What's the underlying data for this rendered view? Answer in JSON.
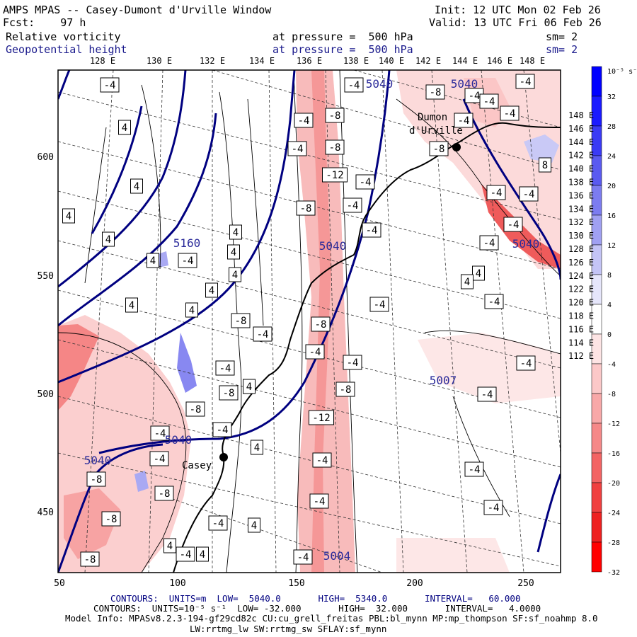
{
  "header": {
    "title": "AMPS MPAS -- Casey-Dumont d'Urville Window",
    "fcst": "Fcst:    97 h",
    "init": "Init: 12 UTC Mon 02 Feb 26",
    "valid": "Valid: 13 UTC Fri 06 Feb 26",
    "field1_name": "Relative vorticity",
    "field1_level": "at pressure =  500 hPa",
    "field1_sm": "sm= 2",
    "field2_name": "Geopotential height",
    "field2_level": "at pressure =  500 hPa",
    "field2_sm": "sm= 2"
  },
  "top_lon_labels": [
    "128 E",
    "130 E",
    "132 E",
    "134 E",
    "136 E",
    "138 E",
    "140 E",
    "142 E",
    "144 E",
    "146 E",
    "148 E"
  ],
  "right_lon_labels": [
    "148 E",
    "146 E",
    "144 E",
    "142 E",
    "140 E",
    "138 E",
    "136 E",
    "134 E",
    "132 E",
    "130 E",
    "128 E",
    "126 E",
    "124 E",
    "122 E",
    "120 E",
    "118 E",
    "116 E",
    "114 E",
    "112 E"
  ],
  "x_ticks": [
    "50",
    "100",
    "150",
    "200",
    "250"
  ],
  "y_ticks": [
    "600",
    "550",
    "500",
    "450"
  ],
  "colorbar": {
    "unit_label": "10⁻⁵ s⁻¹",
    "labels": [
      "32",
      "28",
      "24",
      "20",
      "16",
      "12",
      "8",
      "4",
      "0",
      "-4",
      "-8",
      "-12",
      "-16",
      "-20",
      "-24",
      "-28",
      "-32"
    ],
    "colors": [
      "#0000ff",
      "#1a1aff",
      "#3a3af5",
      "#5a5af0",
      "#7c7cf0",
      "#a0a0f2",
      "#c4c4f6",
      "#e6e6fb",
      "#ffffff",
      "#fde4e4",
      "#fbc8c8",
      "#f8a8a8",
      "#f58888",
      "#f36464",
      "#f04040",
      "#ee2020",
      "#ff0000"
    ]
  },
  "station_labels": {
    "casey": "Casey",
    "dumont1": "Dumon",
    "dumont2": "d'Urville"
  },
  "height_labels": [
    "5040",
    "5040",
    "5040",
    "5040",
    "5040",
    "5040",
    "5160",
    "5007",
    "5004"
  ],
  "footer": {
    "line1": "CONTOURS:  UNITS=m  LOW=  5040.0       HIGH=  5340.0       INTERVAL=   60.000",
    "line2": "CONTOURS:  UNITS=10⁻⁵ s⁻¹  LOW= -32.000       HIGH=  32.000       INTERVAL=   4.0000",
    "line3": "Model Info: MPASv8.2.3-194-gf29cd82c CU:cu_grell_freitas PBL:bl_mynn MP:mp_thompson SF:sf_noahmp 8.0",
    "line4": "LW:rrtmg_lw SW:rrtmg_sw SFLAY:sf_mynn"
  },
  "box_labels": [
    {
      "t": "-4"
    },
    {
      "t": "4"
    },
    {
      "t": "4"
    },
    {
      "t": "4"
    },
    {
      "t": "4"
    },
    {
      "t": "4"
    },
    {
      "t": "4"
    },
    {
      "t": "4"
    },
    {
      "t": "4"
    },
    {
      "t": "-4"
    },
    {
      "t": "4"
    },
    {
      "t": "4"
    },
    {
      "t": "4"
    },
    {
      "t": "-8"
    },
    {
      "t": "-4"
    },
    {
      "t": "4"
    },
    {
      "t": "-4"
    },
    {
      "t": "-8"
    },
    {
      "t": "-8"
    },
    {
      "t": "-4"
    },
    {
      "t": "-4"
    },
    {
      "t": "-4"
    },
    {
      "t": "-8"
    },
    {
      "t": "-8"
    },
    {
      "t": "-4"
    },
    {
      "t": "4"
    },
    {
      "t": "-4"
    },
    {
      "t": "4"
    },
    {
      "t": "4"
    },
    {
      "t": "4"
    },
    {
      "t": "-8"
    },
    {
      "t": "-8"
    },
    {
      "t": "-4"
    },
    {
      "t": "-8"
    },
    {
      "t": "-12"
    },
    {
      "t": "-4"
    },
    {
      "t": "-8"
    },
    {
      "t": "-4"
    },
    {
      "t": "-4"
    },
    {
      "t": "-8"
    },
    {
      "t": "-4"
    },
    {
      "t": "-8"
    },
    {
      "t": "-4"
    },
    {
      "t": "-4"
    },
    {
      "t": "-12"
    },
    {
      "t": "-8"
    },
    {
      "t": "-4"
    },
    {
      "t": "-4"
    },
    {
      "t": "-8"
    },
    {
      "t": "-4"
    },
    {
      "t": "-4"
    },
    {
      "t": "-4"
    },
    {
      "t": "-4"
    },
    {
      "t": "-4"
    },
    {
      "t": "8"
    },
    {
      "t": "-4"
    },
    {
      "t": "-4"
    },
    {
      "t": "-4"
    },
    {
      "t": "4"
    },
    {
      "t": "4"
    },
    {
      "t": "-4"
    },
    {
      "t": "-4"
    },
    {
      "t": "-4"
    },
    {
      "t": "-4"
    },
    {
      "t": "-4"
    },
    {
      "t": "-4"
    },
    {
      "t": "-4"
    },
    {
      "t": "-8"
    },
    {
      "t": "-4"
    },
    {
      "t": "-4"
    }
  ]
}
